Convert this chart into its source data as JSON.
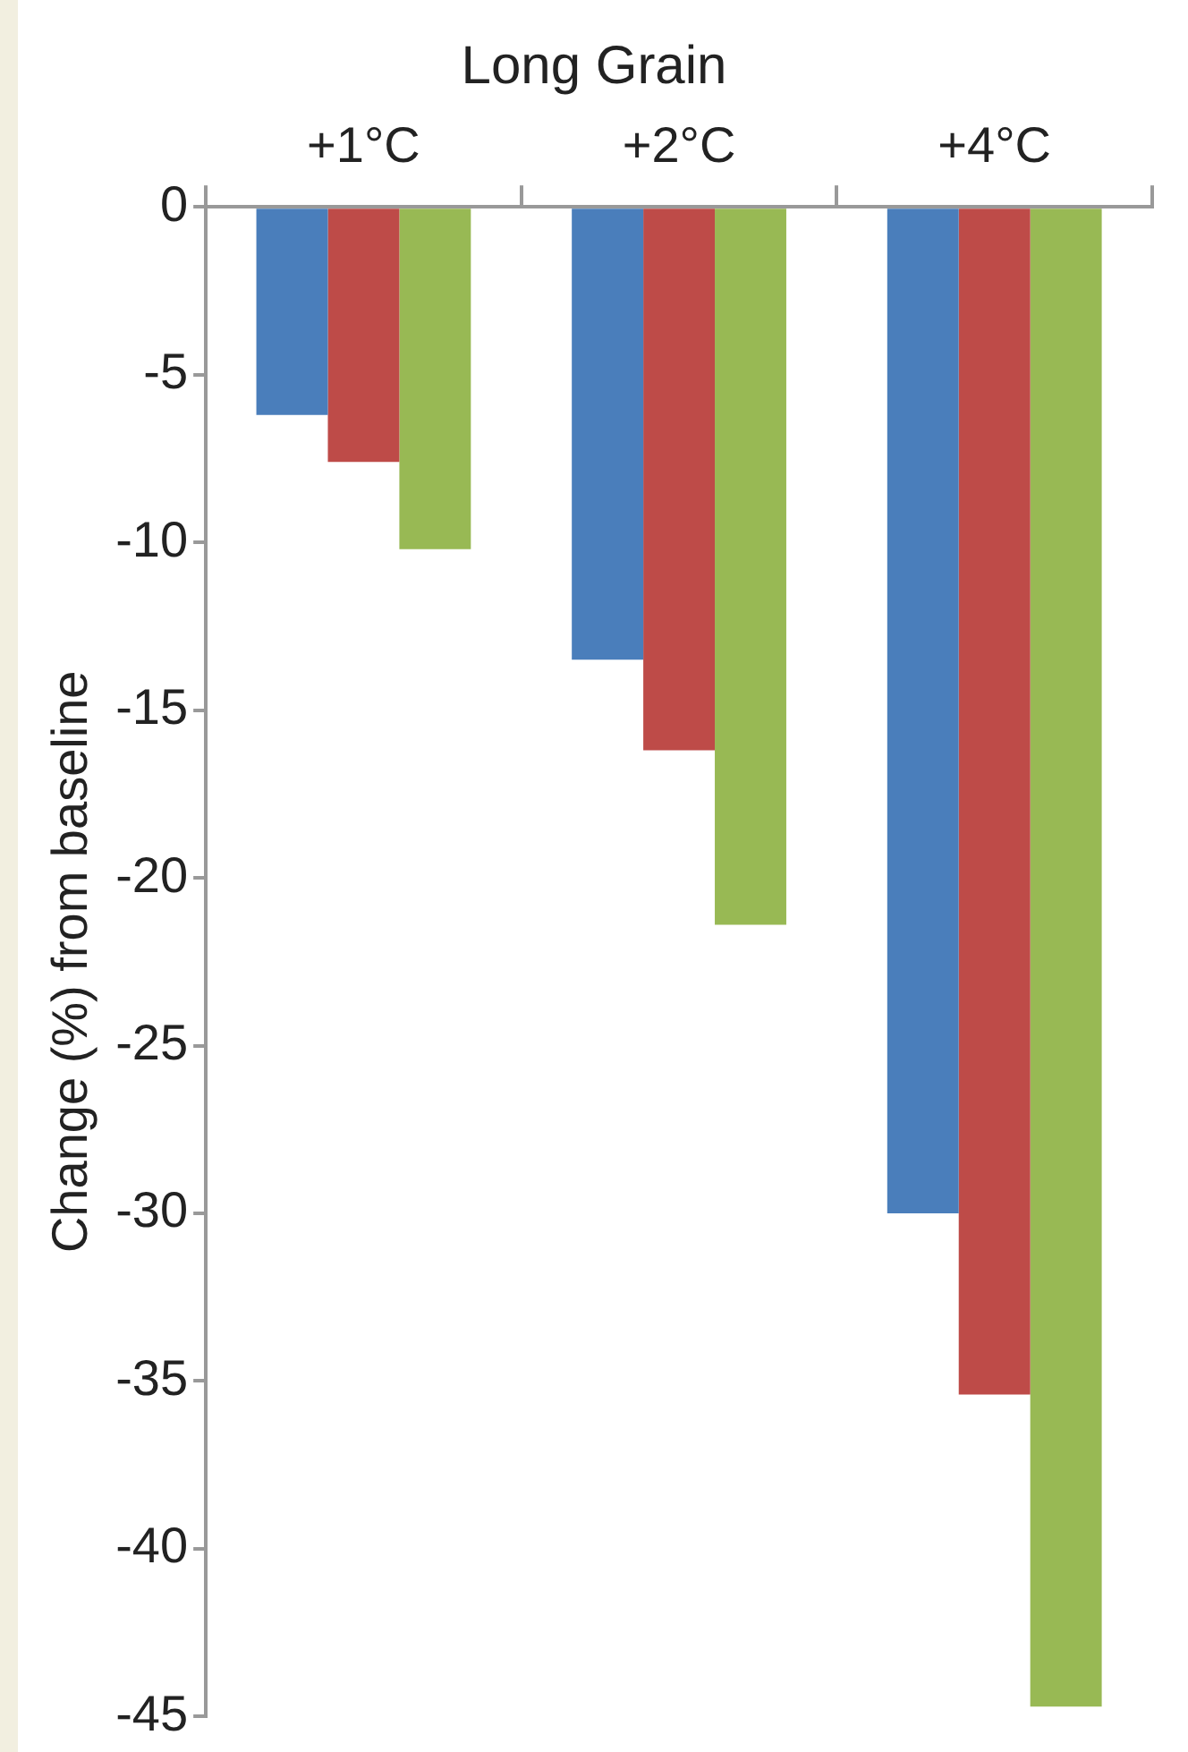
{
  "chart_data": {
    "type": "bar",
    "title": "Long Grain",
    "ylabel": "Change (%) from baseline",
    "categories": [
      "+1°C",
      "+2°C",
      "+4°C"
    ],
    "series": [
      {
        "color": "#4a7ebb",
        "values": [
          -6.2,
          -13.5,
          -30
        ]
      },
      {
        "color": "#be4b48",
        "values": [
          -7.6,
          -16.2,
          -35.4
        ]
      },
      {
        "color": "#98b954",
        "values": [
          -10.2,
          -21.4,
          -44.7
        ]
      }
    ],
    "ylim": [
      -45,
      0
    ],
    "yticks": [
      0,
      -5,
      -10,
      -15,
      -20,
      -25,
      -30,
      -35,
      -40,
      -45
    ],
    "grid": false,
    "legend": false
  }
}
